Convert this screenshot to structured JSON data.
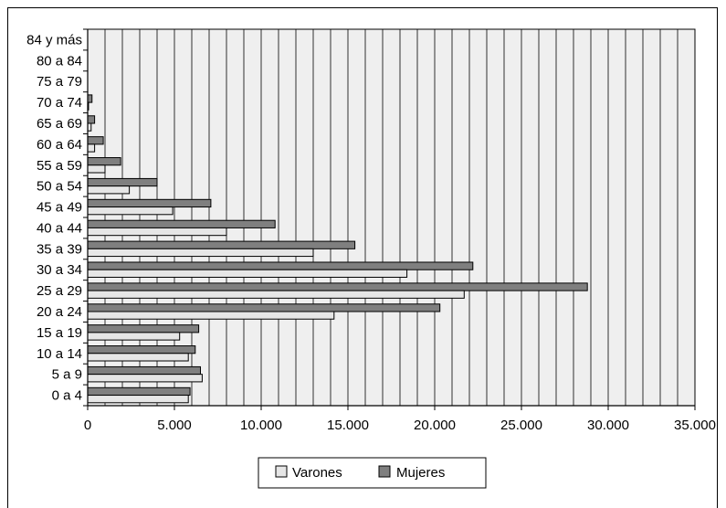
{
  "chart_data": {
    "type": "bar",
    "orientation": "horizontal",
    "categories": [
      "0 a 4",
      "5 a 9",
      "10 a 14",
      "15 a 19",
      "20 a 24",
      "25 a 29",
      "30 a 34",
      "35 a 39",
      "40 a 44",
      "45 a 49",
      "50 a 54",
      "55 a 59",
      "60 a 64",
      "65 a 69",
      "70 a 74",
      "75 a 79",
      "80 a 84",
      "84 y más"
    ],
    "series": [
      {
        "name": "Varones",
        "color": "#e6e6e6",
        "values": [
          5800,
          6600,
          5800,
          5300,
          14200,
          21700,
          18400,
          13000,
          8000,
          4900,
          2400,
          1000,
          400,
          200,
          50,
          0,
          0,
          0
        ]
      },
      {
        "name": "Mujeres",
        "color": "#7f7f7f",
        "values": [
          5900,
          6500,
          6200,
          6400,
          20300,
          28800,
          22200,
          15400,
          10800,
          7100,
          4000,
          1900,
          900,
          400,
          250,
          0,
          0,
          0
        ]
      }
    ],
    "xlim": [
      0,
      35000
    ],
    "x_ticks": [
      0,
      5000,
      10000,
      15000,
      20000,
      25000,
      30000,
      35000
    ],
    "x_tick_labels": [
      "0",
      "5.000",
      "10.000",
      "15.000",
      "20.000",
      "25.000",
      "30.000",
      "35.000"
    ],
    "grid": "vertical",
    "legend_position": "bottom",
    "title": "",
    "xlabel": "",
    "ylabel": ""
  }
}
